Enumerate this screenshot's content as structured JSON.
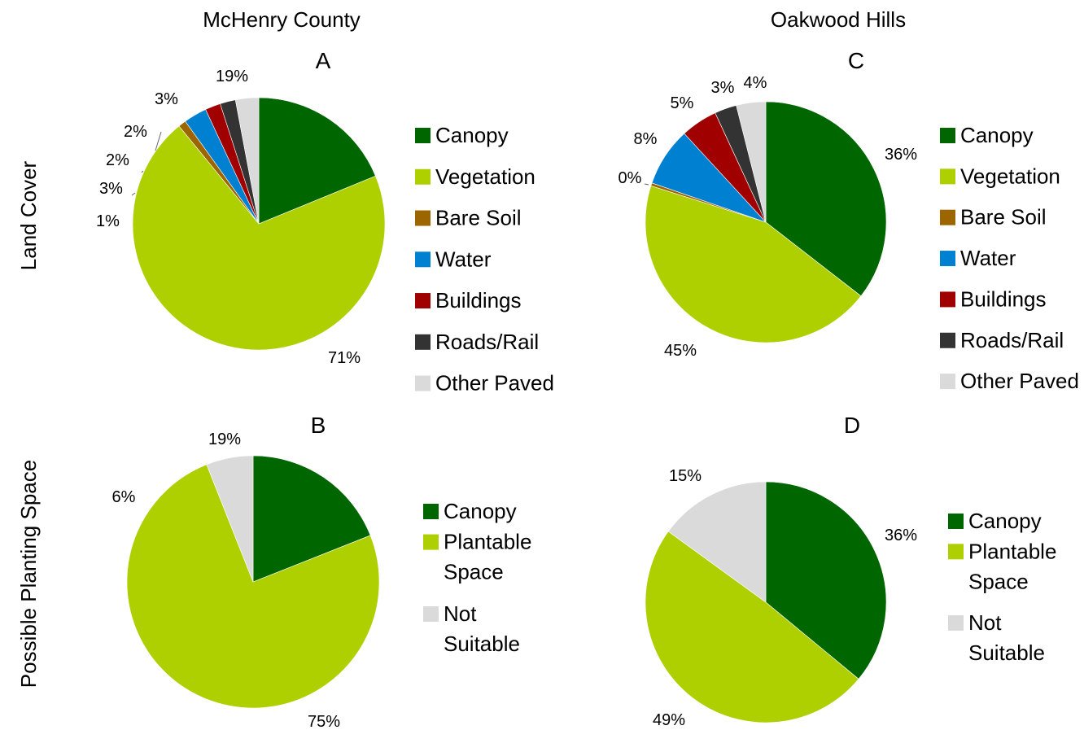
{
  "column_headers": [
    "McHenry County",
    "Oakwood Hills"
  ],
  "row_headers": [
    "Land Cover",
    "Possible Planting Space"
  ],
  "colors": {
    "Canopy": "#006600",
    "Vegetation": "#aecf00",
    "Bare Soil": "#9c6500",
    "Water": "#0080d0",
    "Buildings": "#a00000",
    "Roads/Rail": "#333333",
    "Other Paved": "#dadada",
    "Plantable Space": "#aecf00",
    "Not Suitable": "#dadada"
  },
  "chart_data": [
    {
      "type": "pie",
      "panel": "A",
      "title": "A",
      "categories": [
        "Canopy",
        "Vegetation",
        "Bare Soil",
        "Water",
        "Buildings",
        "Roads/Rail",
        "Other Paved"
      ],
      "values": [
        19,
        71,
        1,
        3,
        2,
        2,
        3
      ],
      "data_labels": [
        "19%",
        "71%",
        "1%",
        "3%",
        "2%",
        "2%",
        "3%"
      ],
      "legend": [
        "Canopy",
        "Vegetation",
        "Bare Soil",
        "Water",
        "Buildings",
        "Roads/Rail",
        "Other Paved"
      ],
      "legend_placement": "right"
    },
    {
      "type": "pie",
      "panel": "B",
      "title": "B",
      "categories": [
        "Canopy",
        "Plantable Space",
        "Not Suitable"
      ],
      "values": [
        19,
        75,
        6
      ],
      "data_labels": [
        "19%",
        "75%",
        "6%"
      ],
      "legend": [
        [
          "Canopy"
        ],
        [
          "Plantable",
          "Space"
        ],
        [
          "Not",
          "Suitable"
        ]
      ],
      "legend_placement": "right"
    },
    {
      "type": "pie",
      "panel": "C",
      "title": "C",
      "categories": [
        "Canopy",
        "Vegetation",
        "Bare Soil",
        "Water",
        "Buildings",
        "Roads/Rail",
        "Other Paved"
      ],
      "values": [
        36,
        45,
        0.4,
        8,
        5,
        3,
        4
      ],
      "data_labels": [
        "36%",
        "45%",
        "0%",
        "8%",
        "5%",
        "3%",
        "4%"
      ],
      "legend": [
        "Canopy",
        "Vegetation",
        "Bare Soil",
        "Water",
        "Buildings",
        "Roads/Rail",
        "Other Paved"
      ],
      "legend_placement": "right"
    },
    {
      "type": "pie",
      "panel": "D",
      "title": "D",
      "categories": [
        "Canopy",
        "Plantable Space",
        "Not Suitable"
      ],
      "values": [
        36,
        49,
        15
      ],
      "data_labels": [
        "36%",
        "49%",
        "15%"
      ],
      "legend": [
        [
          "Canopy"
        ],
        [
          "Plantable",
          "Space"
        ],
        [
          "Not",
          "Suitable"
        ]
      ],
      "legend_placement": "right"
    }
  ]
}
